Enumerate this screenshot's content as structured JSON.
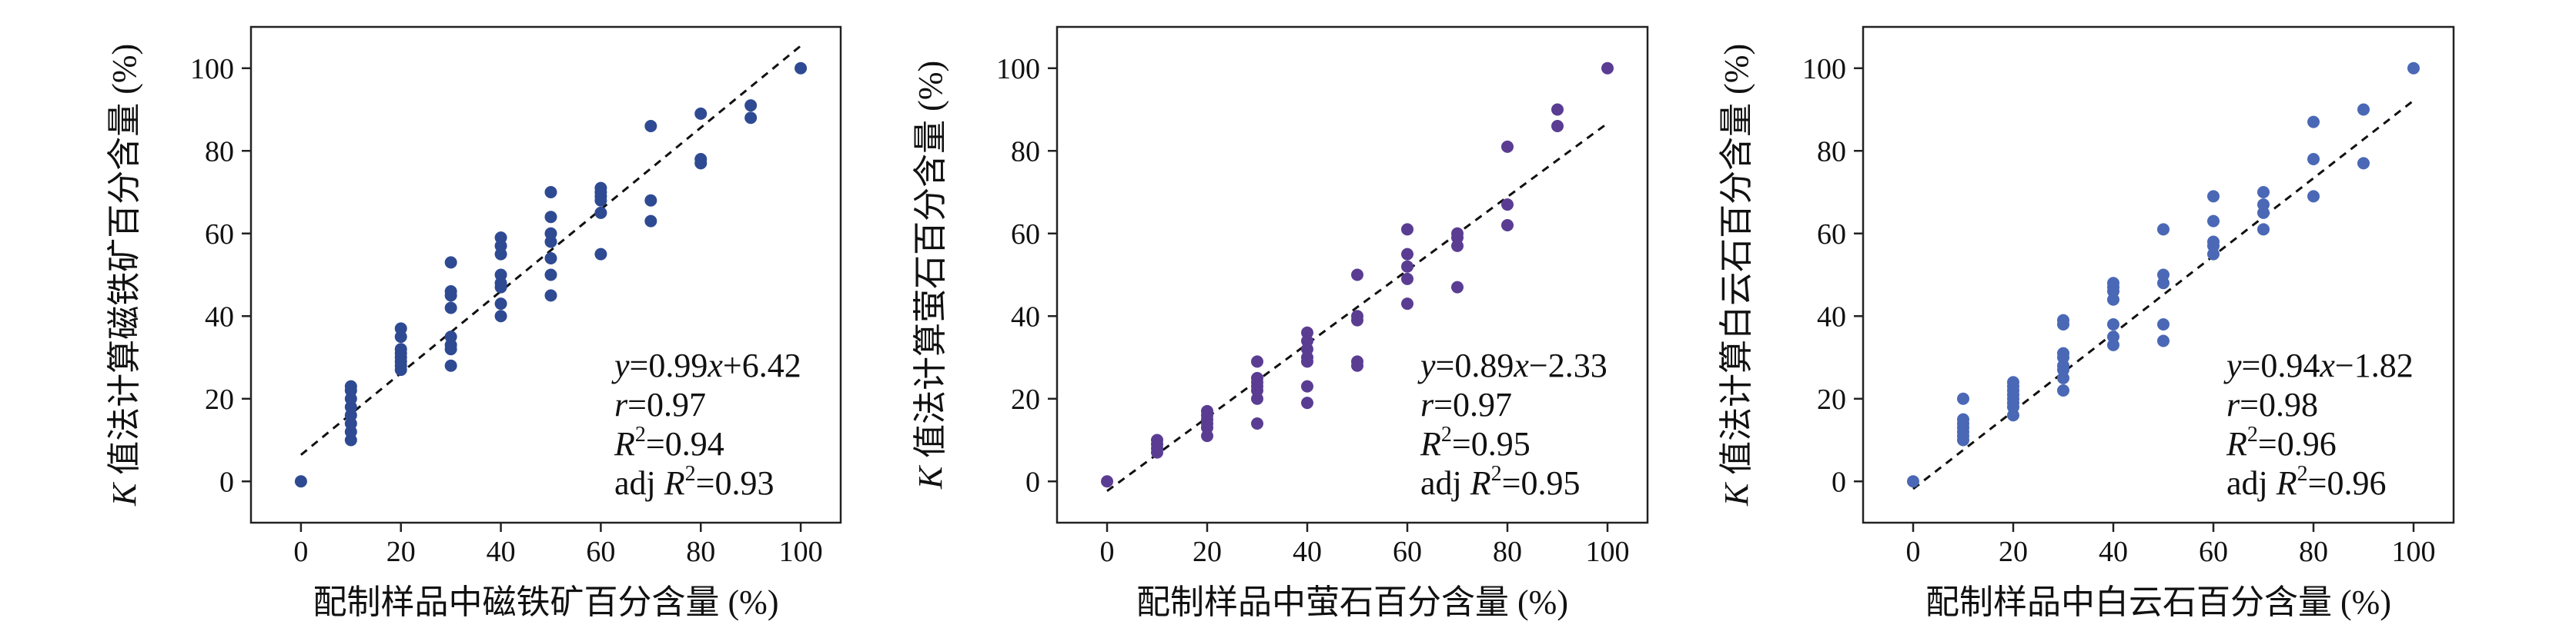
{
  "chart_data": [
    {
      "type": "scatter",
      "title": "",
      "xlabel": "配制样品中磁铁矿百分含量 (%)",
      "ylabel_var": "K",
      "ylabel_rest": " 值法计算磁铁矿百分含量 (%)",
      "xlim": [
        -10,
        108
      ],
      "ylim": [
        -10,
        110
      ],
      "xticks": [
        0,
        20,
        40,
        60,
        80,
        100
      ],
      "yticks": [
        0,
        20,
        40,
        60,
        80,
        100
      ],
      "point_color": "#2E4A93",
      "fit": {
        "slope": 0.99,
        "intercept": 6.42,
        "x_range": [
          0,
          100
        ]
      },
      "stats": {
        "eq_y": "y",
        "eq_mid": "=0.99",
        "eq_x": "x",
        "eq_tail": "+6.42",
        "r_var": "r",
        "r_val": "=0.97",
        "R2_var": "R",
        "R2_sup": "2",
        "R2_val": "=0.94",
        "adj_prefix": "adj ",
        "adj_var": "R",
        "adj_sup": "2",
        "adj_val": "=0.93"
      },
      "points": [
        [
          0,
          0
        ],
        [
          10,
          10
        ],
        [
          10,
          12
        ],
        [
          10,
          14
        ],
        [
          10,
          16
        ],
        [
          10,
          18
        ],
        [
          10,
          20
        ],
        [
          10,
          22
        ],
        [
          10,
          23
        ],
        [
          20,
          27
        ],
        [
          20,
          28
        ],
        [
          20,
          29
        ],
        [
          20,
          30
        ],
        [
          20,
          31
        ],
        [
          20,
          32
        ],
        [
          20,
          35
        ],
        [
          20,
          37
        ],
        [
          30,
          28
        ],
        [
          30,
          32
        ],
        [
          30,
          33
        ],
        [
          30,
          35
        ],
        [
          30,
          42
        ],
        [
          30,
          45
        ],
        [
          30,
          46
        ],
        [
          30,
          53
        ],
        [
          40,
          40
        ],
        [
          40,
          43
        ],
        [
          40,
          47
        ],
        [
          40,
          48
        ],
        [
          40,
          50
        ],
        [
          40,
          55
        ],
        [
          40,
          57
        ],
        [
          40,
          59
        ],
        [
          50,
          45
        ],
        [
          50,
          50
        ],
        [
          50,
          54
        ],
        [
          50,
          58
        ],
        [
          50,
          60
        ],
        [
          50,
          64
        ],
        [
          50,
          70
        ],
        [
          60,
          55
        ],
        [
          60,
          65
        ],
        [
          60,
          68
        ],
        [
          60,
          69
        ],
        [
          60,
          70
        ],
        [
          60,
          71
        ],
        [
          70,
          63
        ],
        [
          70,
          68
        ],
        [
          70,
          86
        ],
        [
          80,
          77
        ],
        [
          80,
          78
        ],
        [
          80,
          89
        ],
        [
          90,
          88
        ],
        [
          90,
          91
        ],
        [
          100,
          100
        ]
      ]
    },
    {
      "type": "scatter",
      "title": "",
      "xlabel": "配制样品中萤石百分含量 (%)",
      "ylabel_var": "K",
      "ylabel_rest": " 值法计算萤石百分含量 (%)",
      "xlim": [
        -10,
        108
      ],
      "ylim": [
        -10,
        110
      ],
      "xticks": [
        0,
        20,
        40,
        60,
        80,
        100
      ],
      "yticks": [
        0,
        20,
        40,
        60,
        80,
        100
      ],
      "point_color": "#5A3D92",
      "fit": {
        "slope": 0.89,
        "intercept": -2.33,
        "x_range": [
          0,
          100
        ]
      },
      "stats": {
        "eq_y": "y",
        "eq_mid": "=0.89",
        "eq_x": "x",
        "eq_tail": "−2.33",
        "r_var": "r",
        "r_val": "=0.97",
        "R2_var": "R",
        "R2_sup": "2",
        "R2_val": "=0.95",
        "adj_prefix": "adj ",
        "adj_var": "R",
        "adj_sup": "2",
        "adj_val": "=0.95"
      },
      "points": [
        [
          0,
          0
        ],
        [
          10,
          7
        ],
        [
          10,
          8
        ],
        [
          10,
          9
        ],
        [
          10,
          10
        ],
        [
          20,
          11
        ],
        [
          20,
          13
        ],
        [
          20,
          14
        ],
        [
          20,
          15
        ],
        [
          20,
          16
        ],
        [
          20,
          17
        ],
        [
          30,
          14
        ],
        [
          30,
          20
        ],
        [
          30,
          22
        ],
        [
          30,
          23
        ],
        [
          30,
          24
        ],
        [
          30,
          25
        ],
        [
          30,
          29
        ],
        [
          40,
          19
        ],
        [
          40,
          23
        ],
        [
          40,
          29
        ],
        [
          40,
          30
        ],
        [
          40,
          32
        ],
        [
          40,
          34
        ],
        [
          40,
          36
        ],
        [
          50,
          28
        ],
        [
          50,
          29
        ],
        [
          50,
          39
        ],
        [
          50,
          40
        ],
        [
          50,
          50
        ],
        [
          60,
          43
        ],
        [
          60,
          49
        ],
        [
          60,
          52
        ],
        [
          60,
          55
        ],
        [
          60,
          61
        ],
        [
          70,
          47
        ],
        [
          70,
          57
        ],
        [
          70,
          59
        ],
        [
          70,
          60
        ],
        [
          80,
          62
        ],
        [
          80,
          67
        ],
        [
          80,
          81
        ],
        [
          90,
          86
        ],
        [
          90,
          90
        ],
        [
          100,
          100
        ]
      ]
    },
    {
      "type": "scatter",
      "title": "",
      "xlabel": "配制样品中白云石百分含量 (%)",
      "ylabel_var": "K",
      "ylabel_rest": " 值法计算白云石百分含量 (%)",
      "xlim": [
        -10,
        108
      ],
      "ylim": [
        -10,
        110
      ],
      "xticks": [
        0,
        20,
        40,
        60,
        80,
        100
      ],
      "yticks": [
        0,
        20,
        40,
        60,
        80,
        100
      ],
      "point_color": "#4A68B5",
      "fit": {
        "slope": 0.94,
        "intercept": -1.82,
        "x_range": [
          0,
          100
        ]
      },
      "stats": {
        "eq_y": "y",
        "eq_mid": "=0.94",
        "eq_x": "x",
        "eq_tail": "−1.82",
        "r_var": "r",
        "r_val": "=0.98",
        "R2_var": "R",
        "R2_sup": "2",
        "R2_val": "=0.96",
        "adj_prefix": "adj ",
        "adj_var": "R",
        "adj_sup": "2",
        "adj_val": "=0.96"
      },
      "points": [
        [
          0,
          0
        ],
        [
          10,
          10
        ],
        [
          10,
          11
        ],
        [
          10,
          12
        ],
        [
          10,
          13
        ],
        [
          10,
          14
        ],
        [
          10,
          15
        ],
        [
          10,
          20
        ],
        [
          20,
          16
        ],
        [
          20,
          18
        ],
        [
          20,
          19
        ],
        [
          20,
          20
        ],
        [
          20,
          21
        ],
        [
          20,
          22
        ],
        [
          20,
          23
        ],
        [
          20,
          24
        ],
        [
          30,
          22
        ],
        [
          30,
          25
        ],
        [
          30,
          27
        ],
        [
          30,
          28
        ],
        [
          30,
          30
        ],
        [
          30,
          31
        ],
        [
          30,
          38
        ],
        [
          30,
          39
        ],
        [
          40,
          33
        ],
        [
          40,
          35
        ],
        [
          40,
          38
        ],
        [
          40,
          44
        ],
        [
          40,
          46
        ],
        [
          40,
          47
        ],
        [
          40,
          48
        ],
        [
          50,
          34
        ],
        [
          50,
          38
        ],
        [
          50,
          48
        ],
        [
          50,
          50
        ],
        [
          50,
          61
        ],
        [
          60,
          55
        ],
        [
          60,
          57
        ],
        [
          60,
          58
        ],
        [
          60,
          63
        ],
        [
          60,
          69
        ],
        [
          70,
          61
        ],
        [
          70,
          65
        ],
        [
          70,
          67
        ],
        [
          70,
          70
        ],
        [
          80,
          69
        ],
        [
          80,
          78
        ],
        [
          80,
          87
        ],
        [
          90,
          77
        ],
        [
          90,
          90
        ],
        [
          100,
          100
        ]
      ]
    }
  ]
}
